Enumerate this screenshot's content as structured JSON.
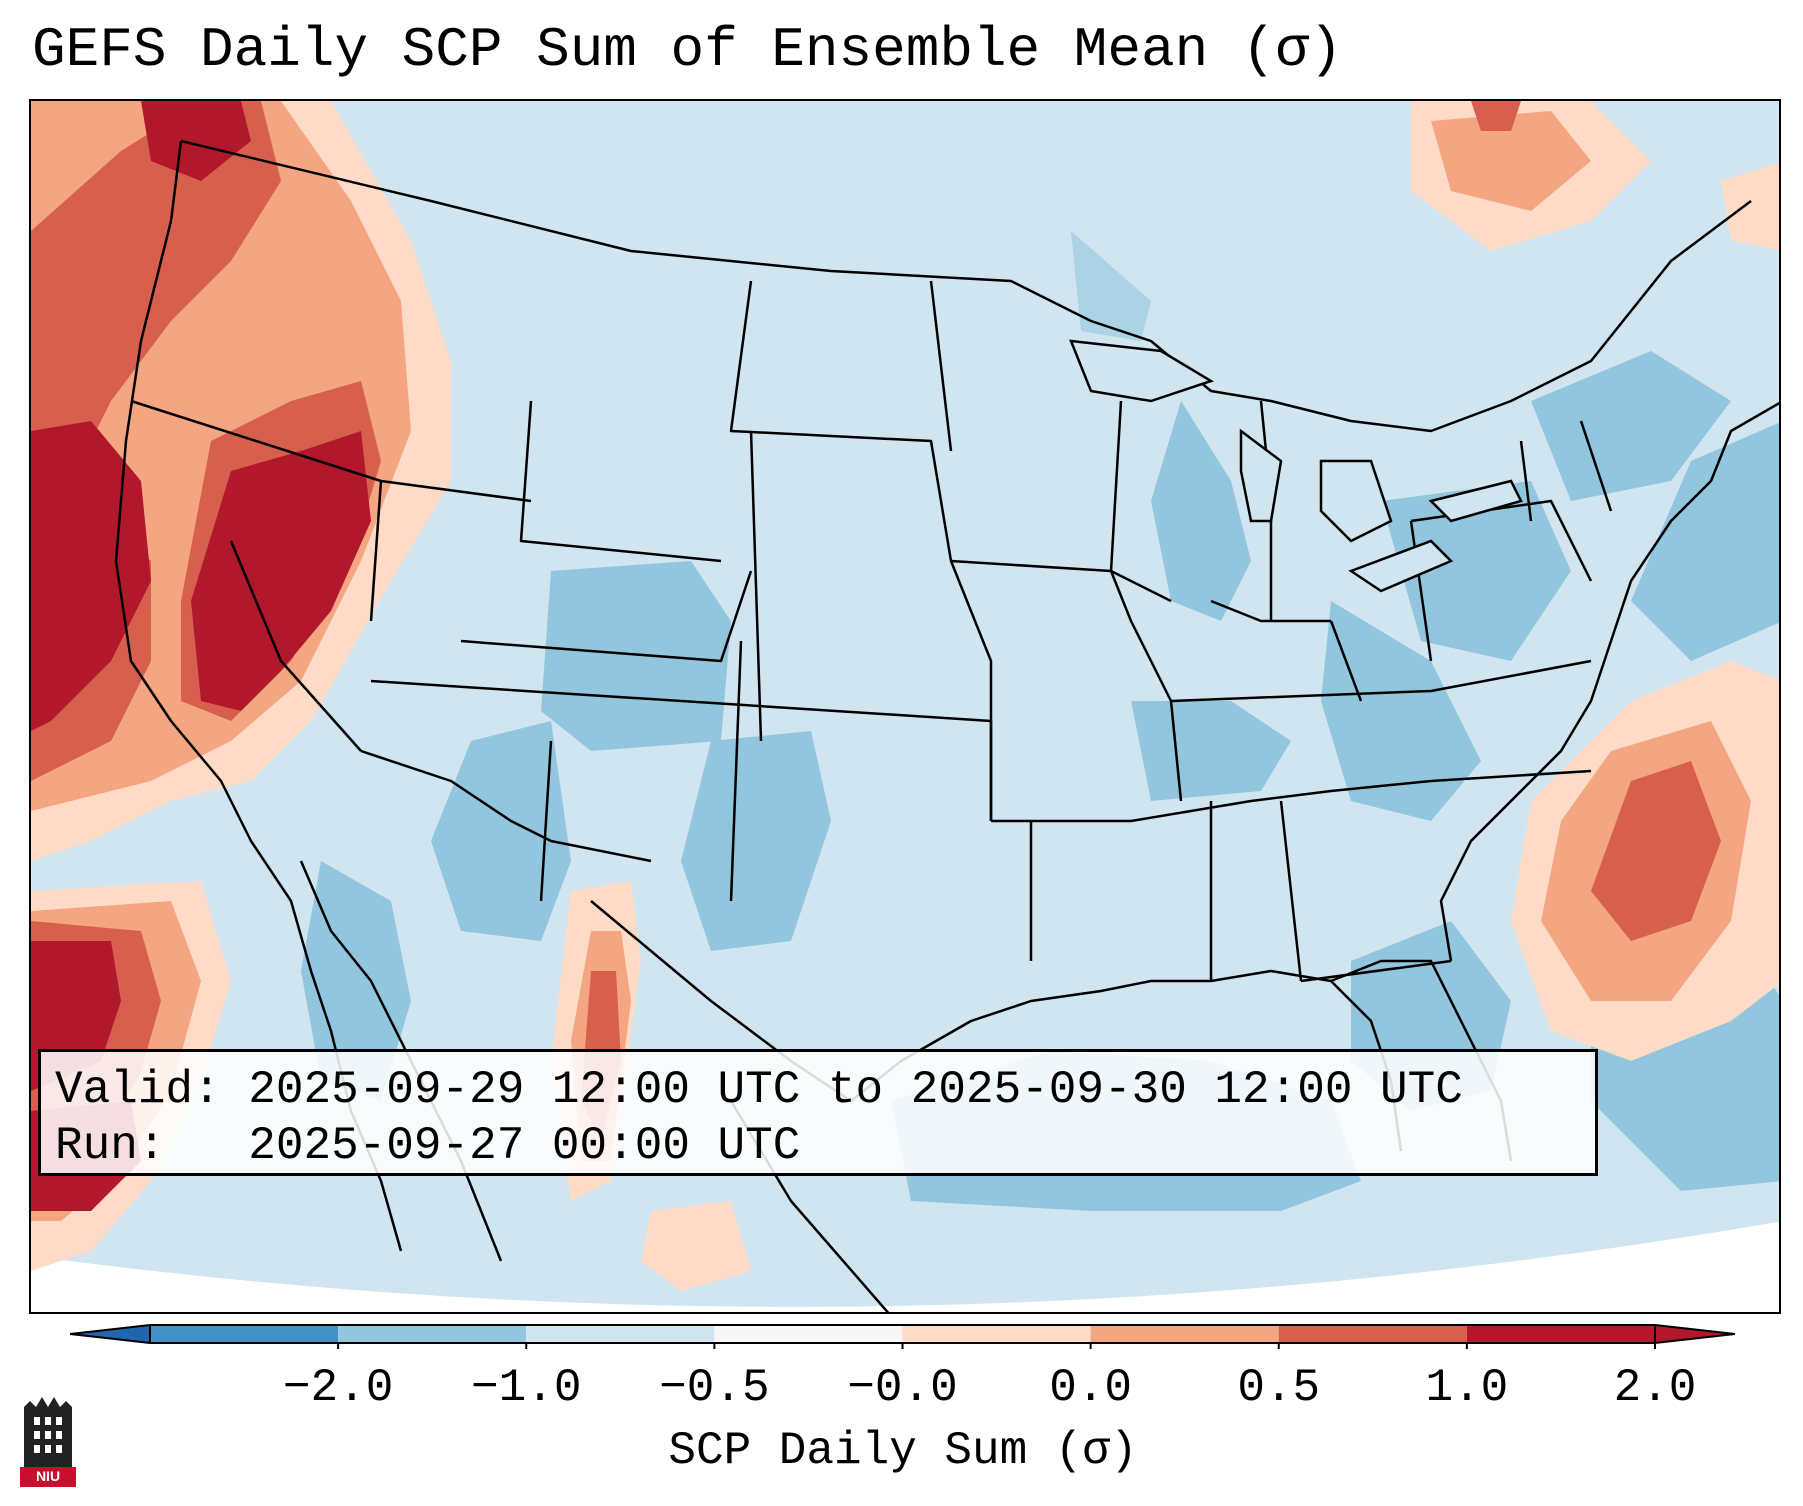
{
  "title": "GEFS Daily SCP Sum of Ensemble Mean (σ)",
  "info": {
    "valid_label": "Valid:",
    "valid_value": "2025-09-29 12:00 UTC to 2025-09-30 12:00 UTC",
    "run_label": "Run:",
    "run_value": "2025-09-27 00:00 UTC"
  },
  "colorbar": {
    "label": "SCP Daily Sum (σ)",
    "tick_labels": [
      "−2.0",
      "−1.0",
      "−0.5",
      "−0.0",
      "0.0",
      "0.5",
      "1.0",
      "2.0"
    ],
    "colors": [
      "#4292c6",
      "#92c5de",
      "#d1e5f0",
      "#f7f7f7",
      "#fddbc7",
      "#f4a582",
      "#d6604d",
      "#b2182b"
    ],
    "under_color": "#2166ac",
    "over_color": "#b2182b"
  },
  "map": {
    "projection": "Lambert Conformal",
    "background_color": "#d1e5f0",
    "offmap_color": "#ffffff"
  },
  "logo": {
    "text": "NIU",
    "color": "#c8102e"
  }
}
